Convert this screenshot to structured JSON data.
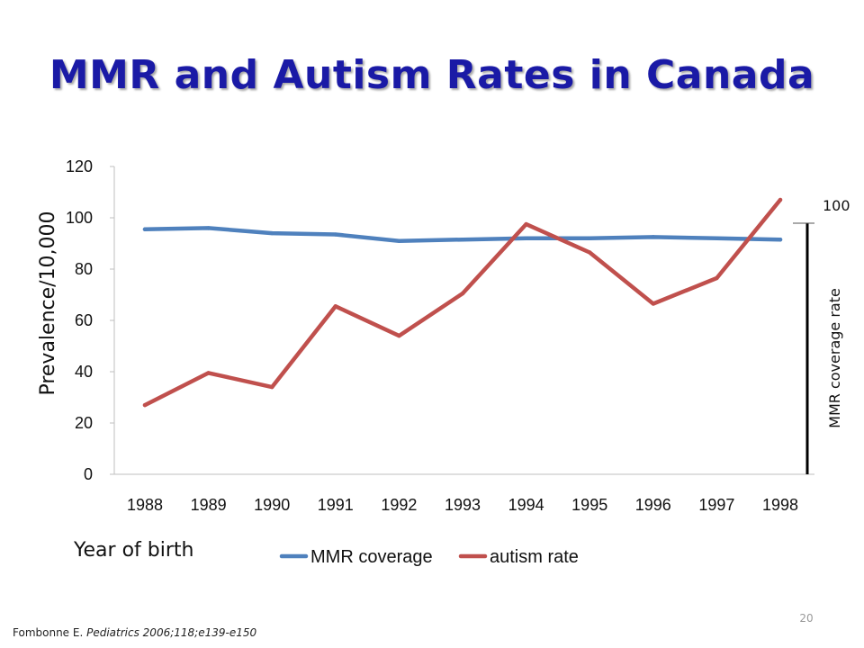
{
  "slide": {
    "title": "MMR and Autism Rates in Canada",
    "citation_author": "Fombonne E.",
    "citation_ref": "Pediatrics 2006;118;e139-e150",
    "page_number": "20"
  },
  "chart_data": {
    "type": "line",
    "categories": [
      "1988",
      "1989",
      "1990",
      "1991",
      "1992",
      "1993",
      "1994",
      "1995",
      "1996",
      "1997",
      "1998"
    ],
    "series": [
      {
        "name": "MMR coverage",
        "color": "#4f81bd",
        "values": [
          95.5,
          96,
          94,
          93.5,
          91,
          91.5,
          92,
          92,
          92.5,
          92,
          91.5
        ]
      },
      {
        "name": "autism rate",
        "color": "#c0504d",
        "values": [
          27,
          39.5,
          34,
          65.5,
          54,
          70.5,
          97.5,
          86.5,
          66.5,
          76.5,
          107
        ]
      }
    ],
    "xlabel": "Year of birth",
    "ylabel": "Prevalence/10,000",
    "ylim": [
      0,
      120
    ],
    "yticks": [
      "0",
      "20",
      "40",
      "60",
      "80",
      "100",
      "120"
    ],
    "secondary_axis": {
      "label": "MMR coverage rate",
      "max_label": "100"
    },
    "grid": false,
    "legend": "bottom"
  }
}
